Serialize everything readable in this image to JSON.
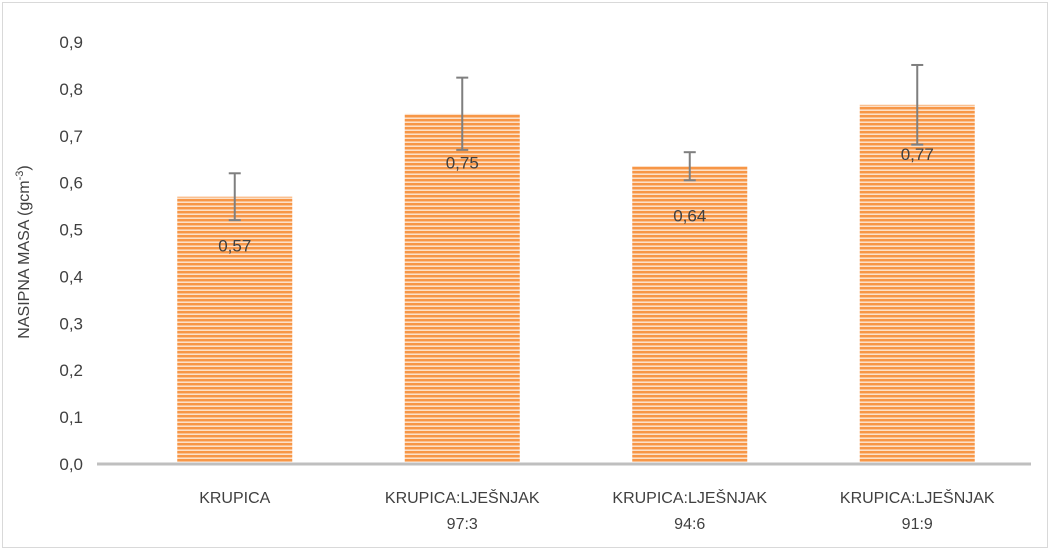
{
  "chart_data": {
    "type": "bar",
    "title": "",
    "xlabel": "",
    "ylabel": "NASIPNA MASA (gcm",
    "ylabel_superscript": "-3",
    "ylabel_suffix": ")",
    "ylim": [
      0,
      0.9
    ],
    "ytick_step": 0.1,
    "yticks": [
      "0,0",
      "0,1",
      "0,2",
      "0,3",
      "0,4",
      "0,5",
      "0,6",
      "0,7",
      "0,8",
      "0,9"
    ],
    "categories": [
      [
        "KRUPICA"
      ],
      [
        "KRUPICA:LJEŠNJAK",
        "97:3"
      ],
      [
        "KRUPICA:LJEŠNJAK",
        "94:6"
      ],
      [
        "KRUPICA:LJEŠNJAK",
        "91:9"
      ]
    ],
    "values": [
      0.57,
      0.747,
      0.635,
      0.766
    ],
    "data_labels": [
      "0,57",
      "0,75",
      "0,64",
      "0,77"
    ],
    "error": [
      0.05,
      0.077,
      0.03,
      0.085
    ],
    "grid": false,
    "legend": "none",
    "colors": {
      "bar_fill": "#f79646",
      "bar_stripe": "#ffffff",
      "error_bar": "#7f7f7f",
      "axis_line": "#bfbfbf",
      "text": "#404040"
    }
  }
}
